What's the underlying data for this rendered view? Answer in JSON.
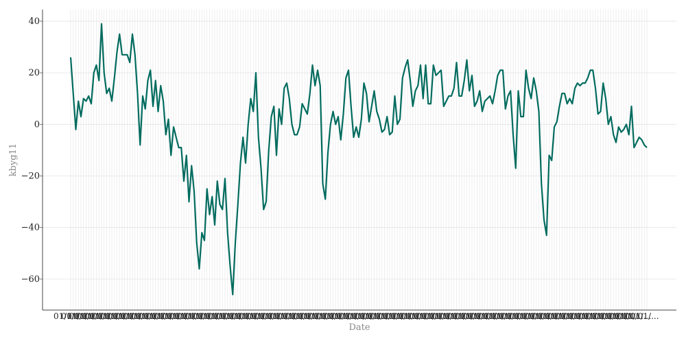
{
  "chart_data": {
    "type": "line",
    "title": "",
    "xlabel": "Date",
    "ylabel": "kbyg11",
    "ylim": [
      -72,
      44.5
    ],
    "yticks": [
      40,
      20,
      0,
      -20,
      -40,
      -60
    ],
    "ytick_labels": [
      "40",
      "20",
      "0",
      "−20",
      "−40",
      "−60"
    ],
    "x_tick_text": "01/01/...",
    "xtick_labels_legible": false,
    "grid": true,
    "line_color": "#006b5e",
    "grid_color": "#e3e3e3",
    "series": [
      {
        "values": [
          26,
          12,
          -2,
          9,
          3,
          10,
          9,
          11,
          8,
          20,
          23,
          17,
          39,
          20,
          12,
          14,
          9,
          18,
          28,
          35,
          27,
          27,
          27,
          24,
          35,
          27,
          12,
          -8,
          11,
          6,
          17,
          21,
          7,
          17,
          5,
          15,
          9,
          -4,
          2,
          -12,
          -1,
          -5,
          -9,
          -9,
          -22,
          -12,
          -30,
          -16,
          -26,
          -46,
          -56,
          -42,
          -45,
          -25,
          -35,
          -28,
          -39,
          -22,
          -31,
          -33,
          -21,
          -42,
          -55,
          -66,
          -46,
          -31,
          -15,
          -5,
          -15,
          0,
          10,
          5,
          20,
          -5,
          -17,
          -33,
          -30,
          -10,
          3,
          7,
          -12,
          6,
          0,
          14,
          16,
          10,
          0,
          -4,
          -4,
          -1,
          8,
          6,
          4,
          12,
          23,
          15,
          21,
          15,
          -23,
          -29,
          -11,
          0,
          5,
          0,
          3,
          -6,
          4,
          18,
          21,
          7,
          -5,
          -1,
          -5,
          2,
          16,
          12,
          1,
          7,
          13,
          5,
          2,
          -3,
          -2,
          3,
          -4,
          -3,
          11,
          0,
          2,
          18,
          22,
          25,
          17,
          7,
          13,
          15,
          23,
          10,
          23,
          8,
          8,
          23,
          19,
          20,
          21,
          7,
          9,
          11,
          11,
          14,
          24,
          11,
          11,
          17,
          25,
          13,
          19,
          7,
          9,
          13,
          5,
          9,
          10,
          11,
          8,
          13,
          19,
          21,
          21,
          6,
          11,
          13,
          -4,
          -17,
          13,
          3,
          3,
          21,
          14,
          10,
          18,
          13,
          5,
          -23,
          -37,
          -43,
          -12,
          -14,
          -1,
          1,
          7,
          12,
          12,
          8,
          10,
          8,
          14,
          16,
          15,
          16,
          16,
          18,
          21,
          21,
          14,
          4,
          5,
          16,
          10,
          0,
          3,
          -4,
          -7,
          -1,
          -3,
          -2,
          0,
          -4,
          7,
          -9,
          -7,
          -5,
          -6,
          -8,
          -9
        ]
      }
    ]
  }
}
